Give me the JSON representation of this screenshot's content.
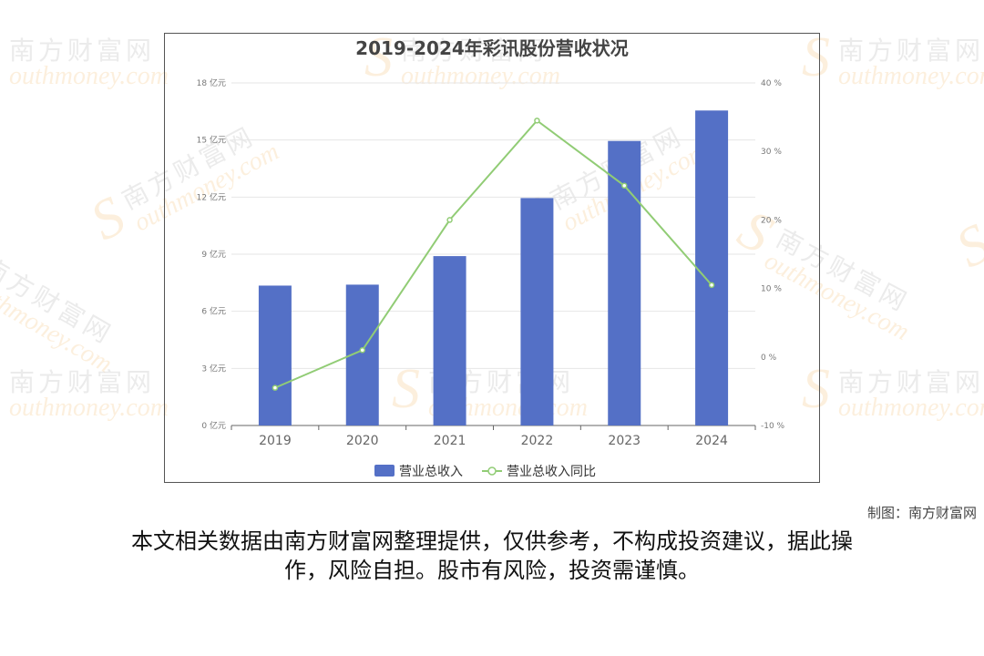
{
  "watermark": {
    "brand_cn": "南方财富网",
    "brand_en": "outhmoney.com",
    "brand_initial": "S"
  },
  "chart_data": {
    "type": "bar",
    "title": "2019-2024年彩讯股份营收状况",
    "categories": [
      "2019",
      "2020",
      "2021",
      "2022",
      "2023",
      "2024"
    ],
    "series": [
      {
        "name": "营业总收入",
        "type": "bar",
        "axis": "left",
        "color": "#5470c6",
        "values": [
          7.35,
          7.4,
          8.9,
          11.95,
          14.95,
          16.55
        ]
      },
      {
        "name": "营业总收入同比",
        "type": "line",
        "axis": "right",
        "color": "#91cc75",
        "values": [
          -4.5,
          1.0,
          20.0,
          34.5,
          25.0,
          10.5
        ]
      }
    ],
    "y_left": {
      "ylim": [
        0,
        18
      ],
      "ticks": [
        0,
        3,
        6,
        9,
        12,
        15,
        18
      ],
      "unit": "亿元",
      "tick_labels": [
        "0 亿元",
        "3 亿元",
        "6 亿元",
        "9 亿元",
        "12 亿元",
        "15 亿元",
        "18 亿元"
      ]
    },
    "y_right": {
      "ylim": [
        -10,
        40
      ],
      "ticks": [
        -10,
        0,
        10,
        20,
        30,
        40
      ],
      "unit": "%",
      "tick_labels": [
        "-10 %",
        "0 %",
        "10 %",
        "20 %",
        "30 %",
        "40 %"
      ]
    },
    "grid": true,
    "legend_position": "bottom"
  },
  "credit": "制图：南方财富网",
  "disclaimer": {
    "line1": "本文相关数据由南方财富网整理提供，仅供参考，不构成投资建议，据此操",
    "line2": "作，风险自担。股市有风险，投资需谨慎。"
  }
}
